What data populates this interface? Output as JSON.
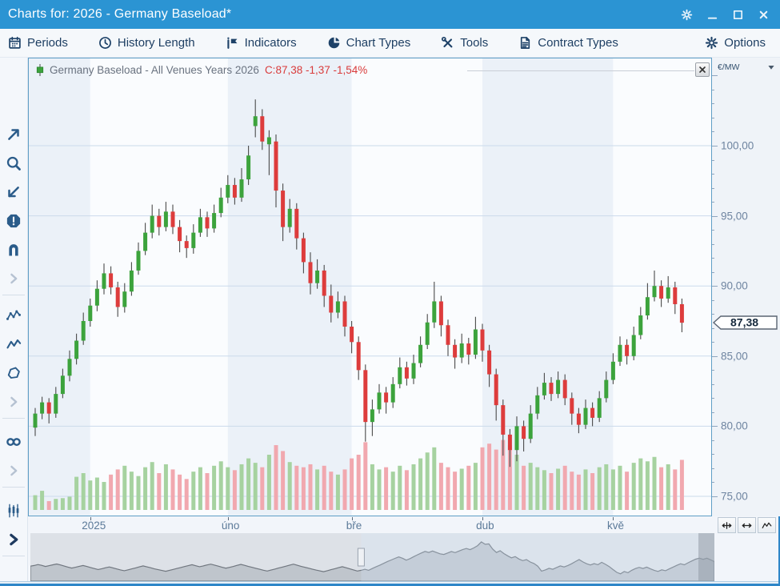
{
  "window": {
    "title": "Charts for: 2026 - Germany Baseload*",
    "controls": [
      {
        "name": "window-settings",
        "icon": "gear-icon"
      },
      {
        "name": "window-minimize",
        "icon": "minimize-icon"
      },
      {
        "name": "window-maximize",
        "icon": "maximize-icon"
      },
      {
        "name": "window-close",
        "icon": "close-icon"
      }
    ]
  },
  "toolbar": {
    "items": [
      {
        "label": "Periods",
        "icon": "calendar-icon"
      },
      {
        "label": "History Length",
        "icon": "clock-icon"
      },
      {
        "label": "Indicators",
        "icon": "indicator-flag-icon"
      },
      {
        "label": "Chart Types",
        "icon": "pie-chart-icon"
      },
      {
        "label": "Tools",
        "icon": "tools-icon"
      },
      {
        "label": "Contract Types",
        "icon": "document-icon"
      },
      {
        "label": "Options",
        "icon": "gear-icon"
      }
    ]
  },
  "sidebar": {
    "groups": [
      {
        "items": [
          {
            "name": "pointer-tool",
            "icon": "arrow-ne-icon",
            "bold": true
          },
          {
            "name": "zoom-tool",
            "icon": "magnifier-icon",
            "bold": true
          },
          {
            "name": "trendline-tool",
            "icon": "arrow-sw-icon",
            "bold": true
          },
          {
            "name": "alert-tool",
            "icon": "alert-octagon-icon",
            "bold": true
          },
          {
            "name": "magnet-tool",
            "icon": "magnet-icon",
            "bold": true
          },
          {
            "name": "more-tools",
            "icon": "chevron-right-icon",
            "bold": false
          }
        ]
      },
      {
        "items": [
          {
            "name": "indicator-line-tool",
            "icon": "zigzag-dots-icon",
            "bold": true
          },
          {
            "name": "free-line-tool",
            "icon": "zigzag-icon",
            "bold": true
          },
          {
            "name": "shape-tool",
            "icon": "polygon-icon",
            "bold": true
          },
          {
            "name": "more-drawings",
            "icon": "chevron-right-icon",
            "bold": false
          }
        ]
      },
      {
        "items": [
          {
            "name": "infinity-tool",
            "icon": "infinity-icon",
            "bold": true
          },
          {
            "name": "more-items",
            "icon": "chevron-right-icon",
            "bold": false
          }
        ]
      },
      {
        "items": [
          {
            "name": "candlestick-style-tool",
            "icon": "candlesticks-icon",
            "bold": true
          },
          {
            "name": "expand-styles",
            "icon": "chevron-right-bold-icon",
            "bold": true
          }
        ]
      },
      {
        "items": [
          {
            "name": "expand-bottom-panel",
            "icon": "chevron-right-bold-icon",
            "bold": true
          }
        ]
      }
    ]
  },
  "chart": {
    "legend": {
      "title": "Germany Baseload - All Venues Years 2026",
      "quote": "C:87,38 -1,37 -1,54%",
      "quote_color": "#D93B3B",
      "marker": "candle-icon"
    },
    "axis_unit": "€/MW",
    "price_tag": "87,38",
    "colors": {
      "up": "#3CA33C",
      "down": "#DD3C3C",
      "wick": "#4A4A4A",
      "vol_up": "#A6D2A0",
      "vol_down": "#F1A8AF",
      "grid": "#CBDAEB",
      "band_a": "#EBF1F8",
      "band_b": "#FAFCFE",
      "accent_blue": "#2B94D3"
    },
    "chart_data": {
      "type": "candlestick+volume",
      "title": "Germany Baseload - All Venues Years 2026",
      "ylabel": "€/MW",
      "ylim": [
        74,
        106
      ],
      "last": {
        "close": 87.38,
        "change": -1.37,
        "change_pct": -1.54
      },
      "y_ticks": [
        {
          "value": 100,
          "label": "100,00"
        },
        {
          "value": 95,
          "label": "95,00"
        },
        {
          "value": 90,
          "label": "90,00"
        },
        {
          "value": 85,
          "label": "85,00"
        },
        {
          "value": 80,
          "label": "80,00"
        },
        {
          "value": 75,
          "label": "75,00"
        }
      ],
      "x_ticks": [
        {
          "label": "2025",
          "index": 8
        },
        {
          "label": "úno",
          "index": 28
        },
        {
          "label": "bře",
          "index": 46
        },
        {
          "label": "dub",
          "index": 65
        },
        {
          "label": "kvě",
          "index": 84
        }
      ],
      "candles": [
        [
          79.9,
          81.3,
          79.3,
          80.9
        ],
        [
          80.9,
          82.1,
          80.5,
          81.7
        ],
        [
          81.7,
          82.0,
          80.2,
          80.9
        ],
        [
          80.9,
          82.8,
          80.6,
          82.3
        ],
        [
          82.3,
          84.1,
          82.0,
          83.6
        ],
        [
          83.6,
          85.4,
          83.2,
          84.8
        ],
        [
          84.8,
          86.6,
          84.4,
          86.1
        ],
        [
          86.1,
          88.1,
          85.8,
          87.5
        ],
        [
          87.5,
          89.1,
          87.1,
          88.6
        ],
        [
          88.6,
          90.4,
          88.2,
          89.8
        ],
        [
          89.8,
          91.6,
          89.4,
          90.9
        ],
        [
          90.9,
          91.4,
          89.4,
          89.9
        ],
        [
          89.9,
          90.3,
          87.8,
          88.5
        ],
        [
          88.5,
          90.2,
          88.1,
          89.6
        ],
        [
          89.6,
          91.7,
          89.3,
          91.1
        ],
        [
          91.1,
          93.1,
          90.8,
          92.5
        ],
        [
          92.5,
          94.5,
          92.2,
          93.8
        ],
        [
          93.8,
          95.8,
          93.4,
          95.0
        ],
        [
          95.0,
          95.5,
          93.6,
          94.2
        ],
        [
          94.2,
          96.0,
          93.9,
          95.3
        ],
        [
          95.3,
          95.8,
          93.7,
          94.2
        ],
        [
          94.2,
          94.7,
          92.4,
          93.2
        ],
        [
          93.2,
          93.6,
          92.0,
          92.7
        ],
        [
          92.7,
          94.4,
          92.3,
          93.8
        ],
        [
          93.8,
          95.5,
          93.5,
          94.9
        ],
        [
          94.9,
          95.3,
          93.5,
          94.1
        ],
        [
          94.1,
          95.8,
          93.8,
          95.2
        ],
        [
          95.2,
          97.0,
          94.9,
          96.3
        ],
        [
          96.3,
          97.9,
          95.9,
          97.2
        ],
        [
          97.2,
          97.7,
          95.8,
          96.3
        ],
        [
          96.3,
          98.4,
          96.0,
          97.6
        ],
        [
          97.6,
          100.0,
          97.2,
          99.3
        ],
        [
          101.4,
          103.3,
          100.6,
          102.1
        ],
        [
          102.1,
          102.6,
          99.7,
          100.3
        ],
        [
          100.1,
          101.1,
          97.9,
          100.6
        ],
        [
          100.3,
          100.8,
          95.6,
          96.8
        ],
        [
          96.8,
          97.3,
          93.2,
          94.2
        ],
        [
          94.2,
          96.2,
          93.8,
          95.5
        ],
        [
          95.5,
          95.9,
          92.6,
          93.4
        ],
        [
          93.4,
          93.8,
          90.9,
          91.7
        ],
        [
          91.7,
          92.4,
          89.4,
          90.2
        ],
        [
          90.2,
          91.9,
          89.8,
          91.1
        ],
        [
          91.1,
          91.5,
          88.5,
          89.3
        ],
        [
          89.3,
          90.1,
          87.4,
          88.1
        ],
        [
          88.1,
          89.6,
          87.7,
          88.9
        ],
        [
          88.9,
          89.3,
          86.4,
          87.1
        ],
        [
          87.1,
          87.5,
          85.2,
          86.0
        ],
        [
          86.0,
          86.4,
          83.3,
          84.0
        ],
        [
          84.0,
          84.4,
          78.9,
          80.3
        ],
        [
          80.3,
          81.9,
          79.3,
          81.2
        ],
        [
          81.2,
          83.0,
          80.9,
          82.4
        ],
        [
          82.4,
          82.8,
          80.9,
          81.7
        ],
        [
          81.7,
          83.5,
          81.3,
          83.0
        ],
        [
          83.0,
          84.9,
          82.7,
          84.2
        ],
        [
          84.2,
          84.6,
          82.9,
          83.4
        ],
        [
          83.4,
          85.1,
          83.0,
          84.5
        ],
        [
          84.5,
          86.4,
          84.2,
          85.8
        ],
        [
          85.8,
          88.0,
          85.5,
          87.4
        ],
        [
          87.4,
          90.3,
          87.0,
          88.9
        ],
        [
          88.9,
          89.3,
          86.4,
          87.2
        ],
        [
          87.2,
          87.6,
          85.0,
          85.8
        ],
        [
          85.8,
          86.2,
          84.1,
          84.9
        ],
        [
          84.9,
          86.6,
          84.5,
          85.9
        ],
        [
          85.9,
          86.3,
          84.4,
          85.1
        ],
        [
          85.1,
          87.8,
          84.8,
          86.9
        ],
        [
          86.9,
          87.3,
          84.6,
          85.4
        ],
        [
          85.4,
          85.8,
          82.8,
          83.7
        ],
        [
          83.7,
          84.1,
          80.4,
          81.5
        ],
        [
          81.5,
          81.9,
          77.9,
          79.4
        ],
        [
          79.4,
          79.8,
          77.1,
          78.3
        ],
        [
          78.3,
          80.7,
          77.5,
          80.0
        ],
        [
          80.0,
          80.4,
          78.2,
          79.1
        ],
        [
          79.1,
          81.5,
          78.8,
          80.9
        ],
        [
          80.9,
          82.8,
          80.5,
          82.2
        ],
        [
          82.2,
          83.8,
          81.9,
          83.1
        ],
        [
          83.1,
          83.5,
          81.8,
          82.3
        ],
        [
          82.3,
          83.9,
          82.0,
          83.3
        ],
        [
          83.3,
          83.7,
          81.5,
          82.0
        ],
        [
          82.0,
          82.4,
          80.1,
          80.9
        ],
        [
          80.9,
          81.3,
          79.5,
          80.1
        ],
        [
          80.1,
          81.9,
          79.8,
          81.3
        ],
        [
          81.3,
          81.7,
          80.0,
          80.6
        ],
        [
          80.6,
          82.5,
          80.3,
          82.0
        ],
        [
          82.0,
          83.9,
          81.7,
          83.3
        ],
        [
          83.3,
          85.2,
          83.0,
          84.6
        ],
        [
          84.6,
          86.4,
          84.3,
          85.8
        ],
        [
          85.8,
          86.2,
          84.4,
          85.0
        ],
        [
          85.0,
          87.1,
          84.7,
          86.5
        ],
        [
          86.5,
          88.5,
          86.2,
          87.9
        ],
        [
          87.9,
          90.2,
          87.6,
          89.2
        ],
        [
          89.2,
          91.1,
          88.9,
          90.0
        ],
        [
          90.0,
          90.4,
          88.5,
          89.1
        ],
        [
          89.1,
          90.7,
          88.8,
          89.9
        ],
        [
          89.9,
          90.3,
          88.0,
          88.7
        ],
        [
          88.7,
          89.1,
          86.7,
          87.38
        ]
      ],
      "volumes": [
        20,
        26,
        12,
        15,
        16,
        18,
        45,
        50,
        40,
        44,
        38,
        48,
        55,
        60,
        52,
        46,
        58,
        65,
        50,
        62,
        55,
        48,
        42,
        52,
        58,
        50,
        60,
        66,
        58,
        54,
        62,
        70,
        64,
        58,
        75,
        88,
        80,
        65,
        60,
        58,
        62,
        55,
        60,
        52,
        48,
        55,
        70,
        75,
        92,
        62,
        55,
        58,
        52,
        60,
        54,
        62,
        70,
        78,
        85,
        64,
        58,
        52,
        56,
        60,
        64,
        85,
        90,
        82,
        95,
        88,
        75,
        60,
        64,
        58,
        54,
        50,
        56,
        60,
        52,
        48,
        55,
        50,
        58,
        62,
        55,
        60,
        52,
        64,
        70,
        66,
        72,
        58,
        62,
        55,
        68
      ]
    }
  },
  "axis_buttons": [
    {
      "name": "fit-width-button",
      "icon": "compress-h-icon"
    },
    {
      "name": "scale-horizontal-button",
      "icon": "arrows-h-icon"
    },
    {
      "name": "auto-scale-button",
      "icon": "wave-icon"
    }
  ],
  "navigator": {
    "selection_start_index": 88,
    "history_values": [
      84.0,
      84.5,
      85.2,
      84.6,
      83.8,
      84.4,
      85.0,
      85.6,
      84.9,
      84.1,
      83.3,
      82.6,
      83.2,
      83.9,
      84.5,
      83.8,
      83.0,
      82.2,
      81.5,
      82.1,
      82.8,
      83.4,
      82.7,
      81.9,
      81.2,
      80.6,
      81.3,
      82.0,
      82.7,
      83.5,
      84.2,
      83.5,
      82.8,
      82.0,
      81.4,
      80.8,
      80.2,
      80.9,
      81.6,
      82.3,
      83.0,
      83.7,
      84.4,
      85.1,
      84.3,
      83.6,
      84.2,
      84.9,
      85.5,
      84.8,
      84.0,
      83.2,
      82.5,
      83.1,
      83.8,
      84.6,
      85.3,
      84.6,
      83.8,
      83.1,
      82.4,
      81.7,
      81.0,
      80.4,
      81.1,
      81.8,
      82.6,
      83.3,
      84.0,
      84.8,
      85.5,
      84.7,
      83.9,
      83.2,
      82.5,
      81.8,
      81.1,
      80.5,
      79.9,
      80.6,
      81.4,
      82.1,
      82.9,
      83.6,
      82.8,
      82.0,
      81.2,
      80.4
    ]
  }
}
